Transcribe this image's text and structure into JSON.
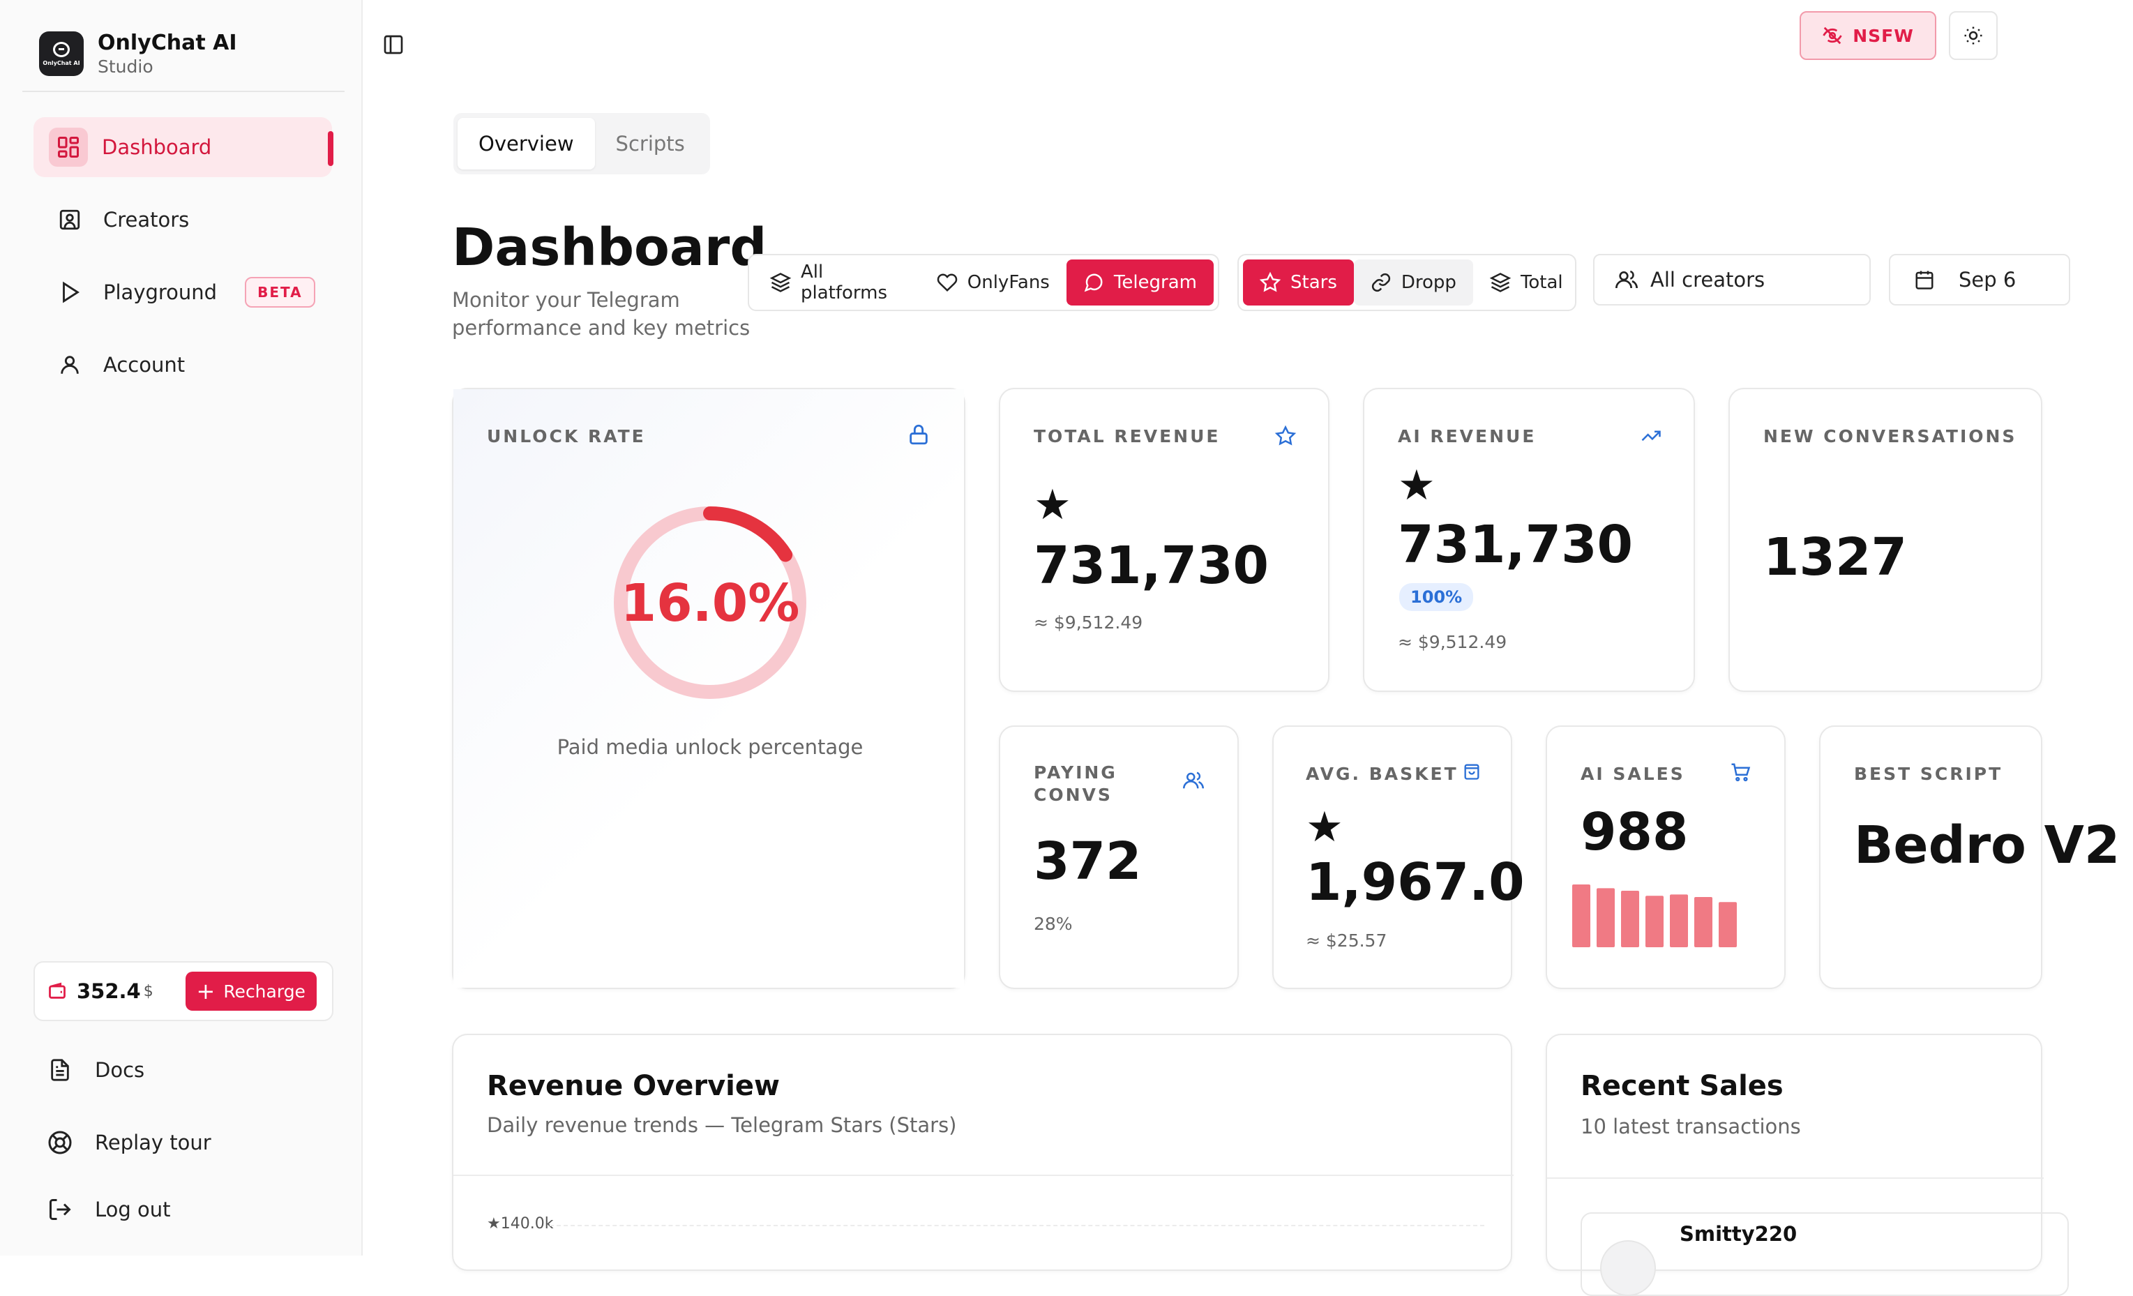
{
  "brand": {
    "name": "OnlyChat AI",
    "subtitle": "Studio",
    "logo_text": "OnlyChat AI"
  },
  "sidebar": {
    "items": [
      {
        "label": "Dashboard",
        "icon": "grid-icon",
        "active": true
      },
      {
        "label": "Creators",
        "icon": "contact-icon"
      },
      {
        "label": "Playground",
        "icon": "play-icon",
        "badge": "BETA"
      },
      {
        "label": "Account",
        "icon": "user-icon"
      }
    ],
    "wallet": {
      "amount": "352.4",
      "currency": "$",
      "recharge_label": "Recharge"
    },
    "footer": [
      {
        "label": "Docs",
        "icon": "doc-icon"
      },
      {
        "label": "Replay tour",
        "icon": "lifebuoy-icon"
      },
      {
        "label": "Log out",
        "icon": "logout-icon"
      }
    ]
  },
  "topbar": {
    "nsfw_label": "NSFW"
  },
  "tabs": [
    {
      "label": "Overview",
      "active": true
    },
    {
      "label": "Scripts"
    }
  ],
  "header": {
    "title": "Dashboard",
    "subtitle": "Monitor your Telegram performance and key metrics"
  },
  "filters": {
    "platforms": [
      "All platforms",
      "OnlyFans",
      "Telegram"
    ],
    "platform_selected": "Telegram",
    "currencies": [
      "Stars",
      "Dropp",
      "Total"
    ],
    "currency_selected": "Stars",
    "creator_select": "All creators",
    "date_text": "Sep 6"
  },
  "metrics": {
    "unlock_rate": {
      "label": "UNLOCK RATE",
      "value": "16.0%",
      "fraction": 0.16,
      "caption": "Paid media unlock percentage"
    },
    "total_revenue": {
      "label": "TOTAL REVENUE",
      "star": "★",
      "value": "731,730",
      "approx": "≈ $9,512.49"
    },
    "ai_revenue": {
      "label": "AI REVENUE",
      "star": "★",
      "value": "731,730",
      "badge": "100%",
      "approx": "≈ $9,512.49"
    },
    "new_conversations": {
      "label": "NEW CONVERSATIONS",
      "value": "1327"
    },
    "paying_convs": {
      "label": "PAYING CONVS",
      "value": "372",
      "sub": "28%"
    },
    "avg_basket": {
      "label": "AVG. BASKET",
      "star": "★",
      "value": "1,967.0",
      "approx": "≈ $25.57"
    },
    "ai_sales": {
      "label": "AI SALES",
      "value": "988",
      "bars": [
        1.0,
        0.94,
        0.9,
        0.82,
        0.84,
        0.8,
        0.72
      ]
    },
    "best_script": {
      "label": "BEST SCRIPT",
      "value": "Bedro V2"
    }
  },
  "revenue_overview": {
    "title": "Revenue Overview",
    "subtitle": "Daily revenue trends — Telegram Stars (Stars)",
    "y_tick": "★140.0k"
  },
  "recent_sales": {
    "title": "Recent Sales",
    "subtitle": "10 latest transactions",
    "first_name": "Smitty220"
  },
  "colors": {
    "accent": "#e11d48",
    "accent_soft": "#fde8ec",
    "ring": "#f8c9cf",
    "bar": "#f07a84",
    "blue": "#2b6fd6"
  }
}
